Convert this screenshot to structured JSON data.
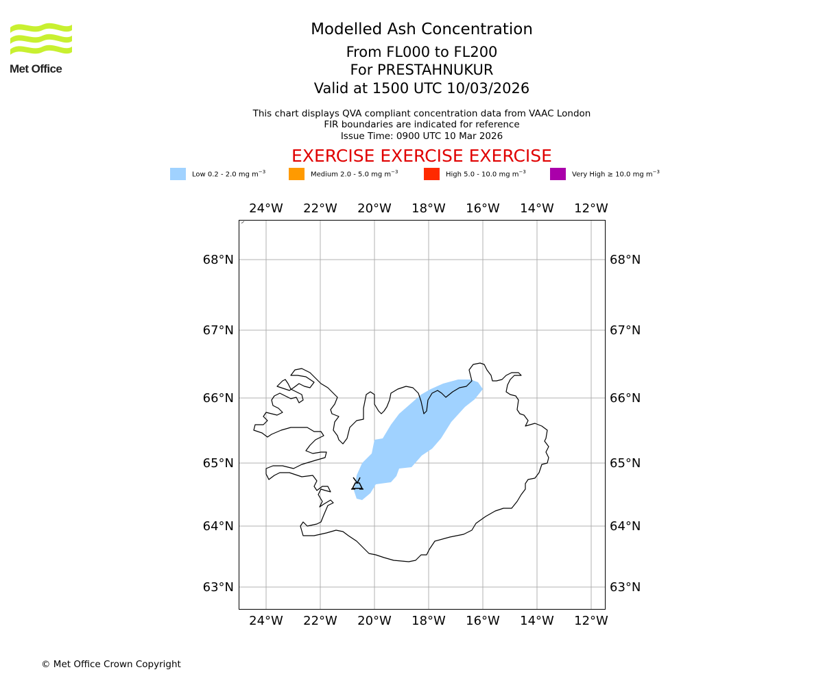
{
  "brand": {
    "name": "Met Office"
  },
  "header": {
    "title": "Modelled Ash Concentration",
    "range": "From FL000 to FL200",
    "volcano": "For PRESTAHNUKUR",
    "valid": "Valid at 1500 UTC 10/03/2026",
    "note1": "This chart displays QVA compliant concentration data from VAAC London",
    "note2": "FIR boundaries are indicated for reference",
    "issue": "Issue Time: 0900 UTC 10 Mar 2026",
    "exercise": "EXERCISE EXERCISE EXERCISE"
  },
  "legend": [
    {
      "label": "Low 0.2 - 2.0 mg m",
      "color": "#a0d2ff"
    },
    {
      "label": "Medium 2.0 - 5.0 mg m",
      "color": "#ff9a00"
    },
    {
      "label": "High 5.0 - 10.0 mg m",
      "color": "#ff2a00"
    },
    {
      "label": "Very High  ≥  10.0 mg m",
      "color": "#aa00aa"
    }
  ],
  "legend_unit_exponent": "−3",
  "map": {
    "lon_labels": [
      "24°W",
      "22°W",
      "20°W",
      "18°W",
      "16°W",
      "14°W",
      "12°W"
    ],
    "lat_labels": [
      "68°N",
      "67°N",
      "66°N",
      "65°N",
      "64°N",
      "63°N"
    ],
    "volcano_symbol": "volcano-marker"
  },
  "footer": {
    "copyright": "© Met Office Crown Copyright"
  }
}
